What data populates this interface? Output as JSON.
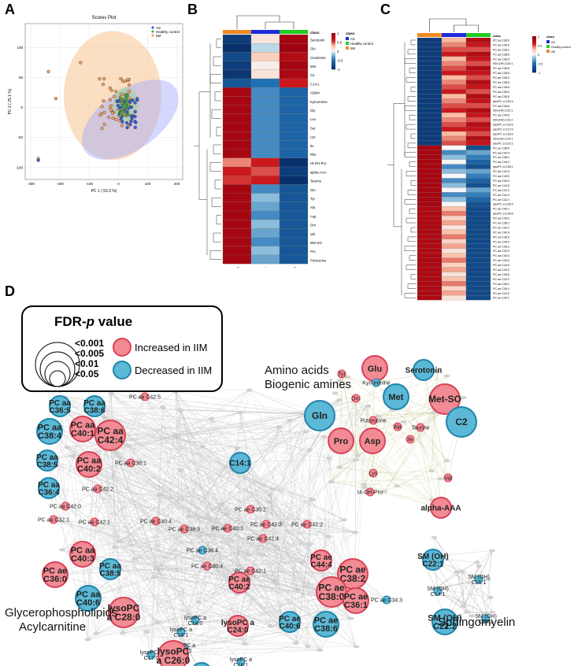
{
  "panels": {
    "a": "A",
    "b": "B",
    "c": "C",
    "d": "D"
  },
  "pca": {
    "title": "Scores Plot",
    "xlabel": "PC 1 ( 53.3 %)",
    "ylabel": "PC 2 ( 25.1 %)",
    "xticks": [
      "-300",
      "-200",
      "-100",
      "0",
      "100",
      "200"
    ],
    "yticks": [
      "100",
      "50",
      "0",
      "-50",
      "-100"
    ],
    "legend": [
      "AS",
      "Healthy control",
      "IIM"
    ],
    "colors": {
      "AS": "#3b5bdb",
      "Healthy control": "#4caf50",
      "IIM": "#f4a460"
    }
  },
  "heatB": {
    "class_label": "class",
    "legend": [
      "AS",
      "Healthy control",
      "IIM"
    ],
    "scale": [
      "1",
      "0.5",
      "0",
      "-0.5",
      "-1"
    ],
    "columns": [
      "IIM",
      "AS",
      "Healthy control"
    ],
    "rows": [
      "Serotonin",
      "Gln",
      "Creatinine",
      "Met",
      "C2",
      "C14:1",
      "ADMA",
      "Kynurenine",
      "Gly",
      "Leu",
      "Ser",
      "Lys",
      "Ile",
      "Phe",
      "Ht-OH-Pro",
      "alpha-AAA",
      "Taurine",
      "Glu",
      "Tyr",
      "Ala",
      "Asp",
      "Orn",
      "Val",
      "Met-SO",
      "Pro",
      "Putrescine"
    ]
  },
  "heatC": {
    "class_label": "class",
    "legend": [
      "AS",
      "Healthy control",
      "IIM"
    ],
    "scale": [
      "1",
      "0.5",
      "0",
      "-0.5",
      "-1"
    ],
    "columns": [
      "IIM",
      "AS",
      "Healthy control"
    ],
    "rows": [
      "PC aa C38:3",
      "PC ae C40:5",
      "PC ae C38:1",
      "PC ae C38:6",
      "PC aa C36:3",
      "SM (OH) C24:1",
      "PC aa C36:5",
      "PC aa C38:5",
      "PC ae C36:3",
      "PC ae C38:4",
      "PC aa C40:6",
      "PC aa C38:4",
      "PC aa C36:5",
      "lysoPC a C20:4",
      "PC aa C36:6",
      "SM (OH) C22:1",
      "PC aa C40:6",
      "SM (OH) C22:2",
      "lysoPC a C18:0",
      "lysoPC a C17:0",
      "lysoPC a C18:0",
      "SM (OH) C14:1",
      "lysoPC a C16:1",
      "PC ae C38:0",
      "PC aa C42:4",
      "PC ae C38:1",
      "PC aa C44:2",
      "lysoPC a C28:1",
      "PC ae C42:4",
      "PC aa C40:5",
      "PC aa C30:0",
      "PC ae C42:5",
      "PC aa C32:2",
      "PC ae C42:2",
      "PC ae C42:1",
      "lysoPC a C26:0",
      "PC ae C40:1",
      "lysoPC a C28:0",
      "PC aa C40:2",
      "PC ae C38:1",
      "PC ae C42:2",
      "PC ae C40:4",
      "PC aa C38:3",
      "PC ae C40:4",
      "PC ae C36:2",
      "PC ae C32:0",
      "PC aa C40:3",
      "PC ae C40:2",
      "PC ae C44:4",
      "PC aa C40:2",
      "PC ae C38:0",
      "PC ae C42:2",
      "PC ae C38:1",
      "PC ae C36:1",
      "PC ae C24:0",
      "PC ae C42:1"
    ],
    "values_note": ""
  },
  "network": {
    "legend_title": "FDR-",
    "legend_title_italic": "p",
    "legend_title_suffix": " value",
    "legend_levels": [
      "<0.001",
      "<0.005",
      "<0.01",
      "<0.05"
    ],
    "legend_increased": "Increased in IIM",
    "legend_decreased": "Decreased in IIM",
    "increased_color": "#f28b93",
    "decreased_color": "#5bb8d6",
    "clusters": {
      "amino_title_1": "Amino acids",
      "amino_title_2": "Biogenic amines",
      "glycero_title_1": "Glycerophospholipids",
      "glycero_title_2": "Acylcarnitine",
      "sphingo_title": "Sphingomyelin"
    },
    "amino_nodes": [
      {
        "label": "Glu",
        "type": "inc",
        "size": "L"
      },
      {
        "label": "Tyr",
        "type": "inc",
        "size": "S"
      },
      {
        "label": "Kynurenine",
        "type": "dec",
        "size": "S"
      },
      {
        "label": "Serotonin",
        "type": "dec",
        "size": "M"
      },
      {
        "label": "Orn",
        "type": "inc",
        "size": "S"
      },
      {
        "label": "Met",
        "type": "dec",
        "size": "L"
      },
      {
        "label": "Met-SO",
        "type": "inc",
        "size": "XL"
      },
      {
        "label": "Gln",
        "type": "dec",
        "size": "XL"
      },
      {
        "label": "Putrescine",
        "type": "inc",
        "size": "S"
      },
      {
        "label": "C2",
        "type": "dec",
        "size": "XL"
      },
      {
        "label": "Ala",
        "type": "inc",
        "size": "S"
      },
      {
        "label": "Taurine",
        "type": "inc",
        "size": "S"
      },
      {
        "label": "Asp",
        "type": "inc",
        "size": "L"
      },
      {
        "label": "Pro",
        "type": "inc",
        "size": "L"
      },
      {
        "label": "Ile",
        "type": "inc",
        "size": "S"
      },
      {
        "label": "Lys",
        "type": "inc",
        "size": "S"
      },
      {
        "label": "Val",
        "type": "inc",
        "size": "S"
      },
      {
        "label": "alpha-AAA",
        "type": "inc",
        "size": "M"
      },
      {
        "label": "t4-OH-Pro",
        "type": "inc",
        "size": "S"
      }
    ],
    "glycero_nodes": [
      {
        "label": "PC aa\nC36:5",
        "type": "dec",
        "size": "M"
      },
      {
        "label": "PC aa\nC38:6",
        "type": "dec",
        "size": "M"
      },
      {
        "label": "PC aa\nC38:4",
        "type": "dec",
        "size": "L"
      },
      {
        "label": "PC aa\nC40:1",
        "type": "inc",
        "size": "L"
      },
      {
        "label": "PC aa C42:5",
        "type": "inc",
        "size": "S"
      },
      {
        "label": "PC aa\nC42:4",
        "type": "inc",
        "size": "XL"
      },
      {
        "label": "PC aa\nC38:5",
        "type": "dec",
        "size": "M"
      },
      {
        "label": "PC aa\nC40:2",
        "type": "inc",
        "size": "L"
      },
      {
        "label": "PC aa C38:1",
        "type": "inc",
        "size": "S"
      },
      {
        "label": "PC aa\nC36:4",
        "type": "dec",
        "size": "M"
      },
      {
        "label": "C14:1",
        "type": "dec",
        "size": "M"
      },
      {
        "label": "PC aa C42:2",
        "type": "inc",
        "size": "S"
      },
      {
        "label": "PC aa C42:0",
        "type": "inc",
        "size": "S"
      },
      {
        "label": "PC aa C32:1",
        "type": "inc",
        "size": "S"
      },
      {
        "label": "PC aa C42:1",
        "type": "inc",
        "size": "S"
      },
      {
        "label": "PC ae C40:4",
        "type": "inc",
        "size": "S"
      },
      {
        "label": "PC ae C30:2",
        "type": "inc",
        "size": "S"
      },
      {
        "label": "PC ae C42:3",
        "type": "inc",
        "size": "S"
      },
      {
        "label": "PC ae C42:2",
        "type": "inc",
        "size": "S"
      },
      {
        "label": "PC aa\nC40:3",
        "type": "inc",
        "size": "L"
      },
      {
        "label": "PC ae C38:3",
        "type": "inc",
        "size": "S"
      },
      {
        "label": "PC ae C40:3",
        "type": "inc",
        "size": "S"
      },
      {
        "label": "PC ae C42:4",
        "type": "inc",
        "size": "S"
      },
      {
        "label": "PC ae\nC44:4",
        "type": "inc",
        "size": "M"
      },
      {
        "label": "PC ae\nC38:2",
        "type": "inc",
        "size": "XL"
      },
      {
        "label": "PC ae\nC36:0",
        "type": "inc",
        "size": "L"
      },
      {
        "label": "PC aa\nC38:5",
        "type": "dec",
        "size": "M"
      },
      {
        "label": "PC ae C36:4",
        "type": "dec",
        "size": "S"
      },
      {
        "label": "PC aa\nC40:6",
        "type": "dec",
        "size": "L"
      },
      {
        "label": "PC ae\nC40:2",
        "type": "inc",
        "size": "M"
      },
      {
        "label": "PC ae C40:4",
        "type": "inc",
        "size": "S"
      },
      {
        "label": "PC ae C42:1",
        "type": "inc",
        "size": "S"
      },
      {
        "label": "PC ae\nC38:0",
        "type": "inc",
        "size": "XL"
      },
      {
        "label": "PC ae\nC36:1",
        "type": "inc",
        "size": "L"
      },
      {
        "label": "PC ae C34:3",
        "type": "dec",
        "size": "S"
      },
      {
        "label": "lysoPC\na C28:0",
        "type": "inc",
        "size": "XL"
      },
      {
        "label": "lysoPC a\nC18:1",
        "type": "dec",
        "size": "S"
      },
      {
        "label": "lysoPC a\nC16:0",
        "type": "dec",
        "size": "S"
      },
      {
        "label": "lysoPC a\nC18:0",
        "type": "dec",
        "size": "S"
      },
      {
        "label": "lysoPC a\nC24:0",
        "type": "inc",
        "size": "M"
      },
      {
        "label": "PC ae\nC40:6",
        "type": "dec",
        "size": "M"
      },
      {
        "label": "PC ae\nC38:6",
        "type": "dec",
        "size": "L"
      },
      {
        "label": "lysoPC a\nC17:0",
        "type": "dec",
        "size": "S"
      },
      {
        "label": "lysoPC\na C26:0",
        "type": "inc",
        "size": "XL"
      },
      {
        "label": "lysoPC a\nC20:4",
        "type": "dec",
        "size": "M"
      },
      {
        "label": "lysoPC a\nC16:1",
        "type": "dec",
        "size": "S"
      }
    ],
    "sphingo_nodes": [
      {
        "label": "SM (OH)\nC22:1",
        "type": "dec",
        "size": "M"
      },
      {
        "label": "SM (OH)\nC16:1",
        "type": "dec",
        "size": "S"
      },
      {
        "label": "SM (OH)\nC14:1",
        "type": "dec",
        "size": "S"
      },
      {
        "label": "SM (OH)\nC22:2",
        "type": "dec",
        "size": "L"
      },
      {
        "label": "SM (OH)\nC24:1",
        "type": "dec",
        "size": "S"
      }
    ]
  }
}
